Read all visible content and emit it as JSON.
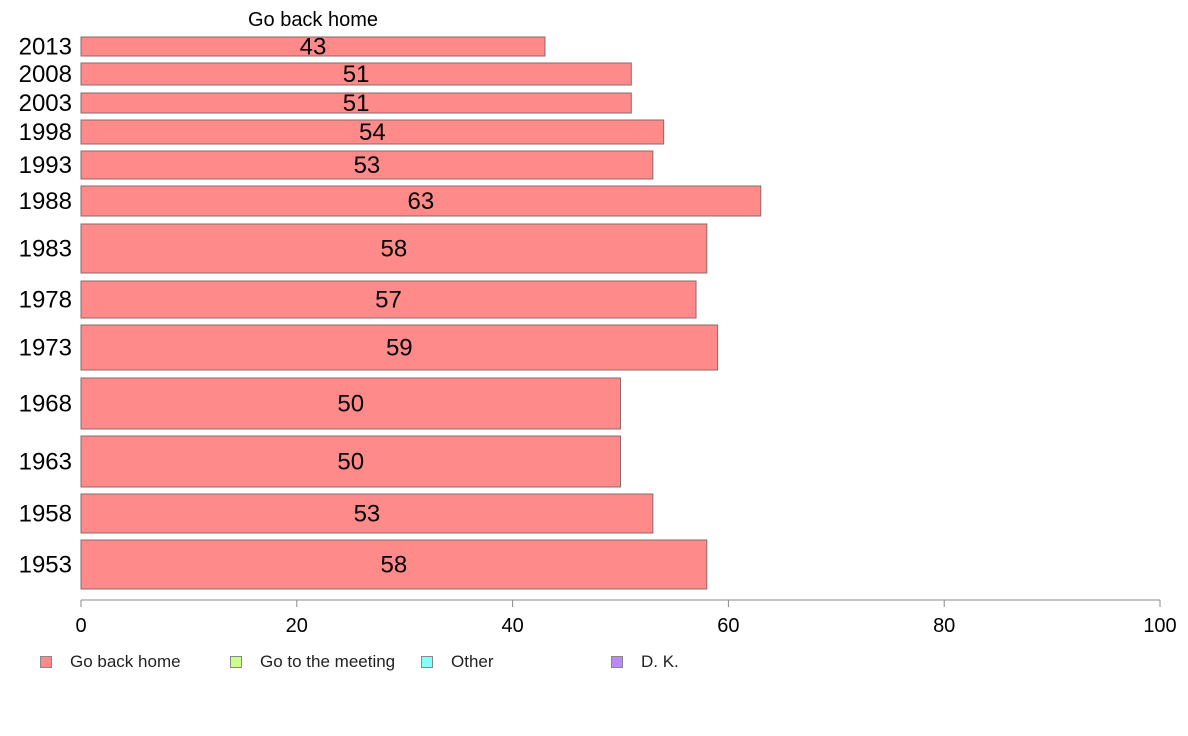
{
  "chart_data": {
    "type": "bar",
    "orientation": "horizontal",
    "title": "Go back home",
    "categories": [
      "2013",
      "2008",
      "2003",
      "1998",
      "1993",
      "1988",
      "1983",
      "1978",
      "1973",
      "1968",
      "1963",
      "1958",
      "1953"
    ],
    "values": [
      43,
      51,
      51,
      54,
      53,
      63,
      58,
      57,
      59,
      50,
      50,
      53,
      58
    ],
    "data_labels": [
      "43",
      "51",
      "51",
      "54",
      "53",
      "63",
      "58",
      "57",
      "59",
      "50",
      "50",
      "53",
      "58"
    ],
    "xlim": [
      0,
      100
    ],
    "xticks": [
      "0",
      "20",
      "40",
      "60",
      "80",
      "100"
    ],
    "grid": false,
    "legend_position": "bottom",
    "legend": [
      {
        "label": "Go back home",
        "color": "#ff8a8a"
      },
      {
        "label": "Go to the meeting",
        "color": "#ccff88"
      },
      {
        "label": "Other",
        "color": "#88ffff"
      },
      {
        "label": "D. K.",
        "color": "#bb88ff"
      }
    ],
    "bar_color": "#ff8a8a"
  }
}
